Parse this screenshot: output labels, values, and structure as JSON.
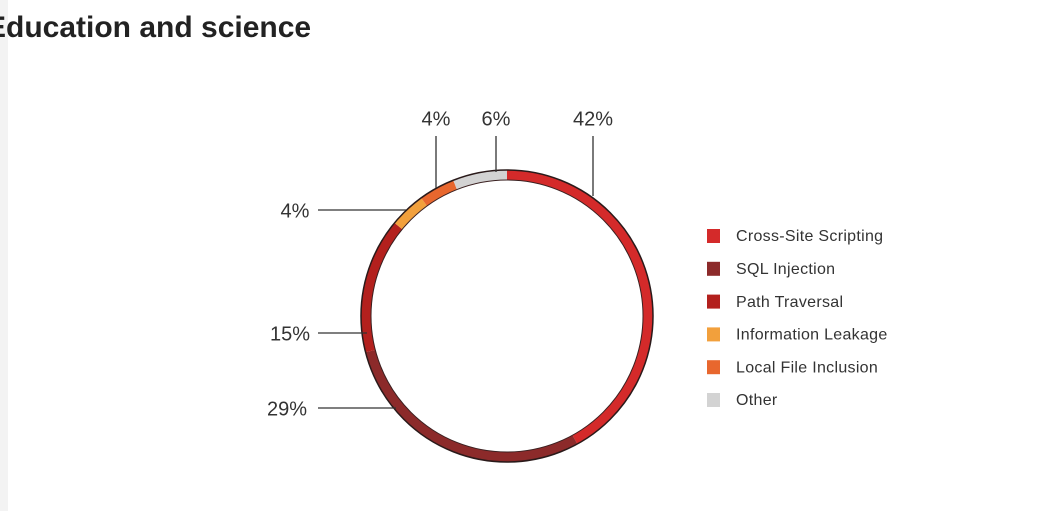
{
  "chart_data": {
    "type": "pie",
    "title": "Education and science",
    "categories": [
      "Cross-Site Scripting",
      "SQL Injection",
      "Path Traversal",
      "Information Leakage",
      "Local File Inclusion",
      "Other"
    ],
    "values": [
      42,
      29,
      15,
      4,
      4,
      6
    ],
    "value_labels": [
      "42%",
      "29%",
      "15%",
      "4%",
      "4%",
      "6%"
    ],
    "colors": [
      "#d42a2a",
      "#8c2a2a",
      "#b3201d",
      "#f2a03c",
      "#e8672e",
      "#d3d3d3"
    ],
    "donut": true,
    "legend": "right"
  }
}
